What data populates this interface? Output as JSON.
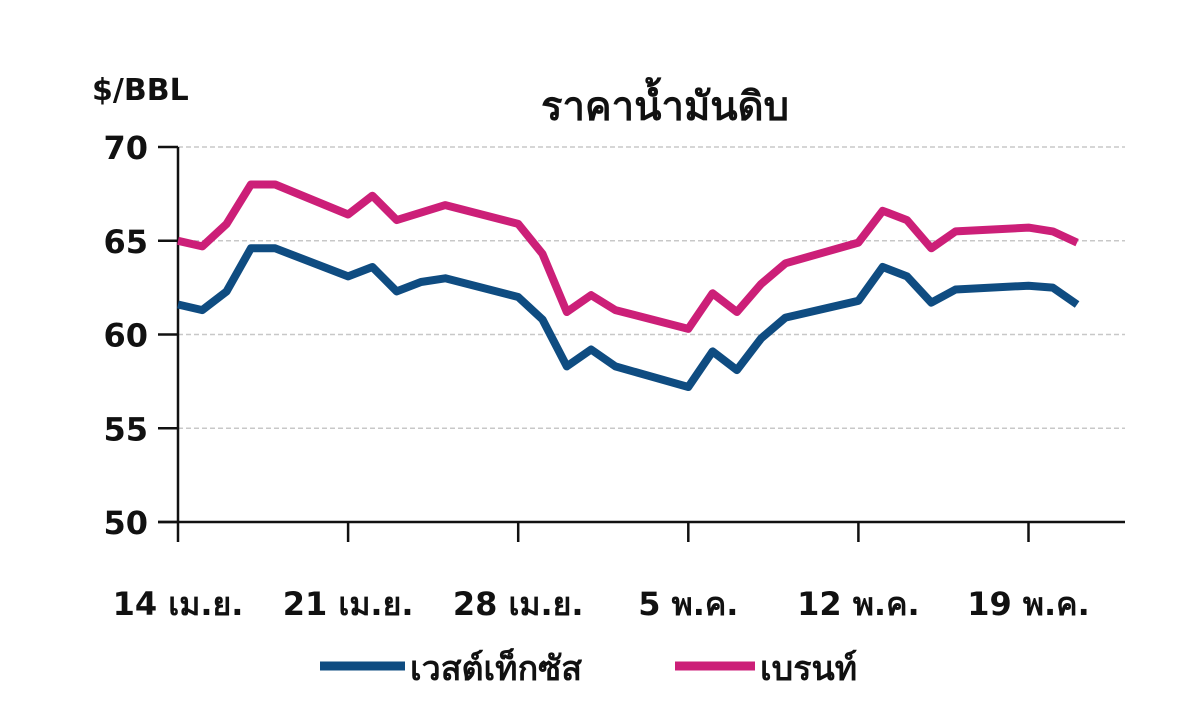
{
  "chart_data": {
    "type": "line",
    "title": "ราคาน้ำมันดิบ",
    "ylabel": "$/BBL",
    "xlabel": "",
    "ylim": [
      50,
      70
    ],
    "yticks": [
      50,
      55,
      60,
      65,
      70
    ],
    "xlim": [
      "2025-04-14",
      "2025-05-23"
    ],
    "xticks": [
      {
        "date": "2025-04-14",
        "label": "14 เม.ย."
      },
      {
        "date": "2025-04-21",
        "label": "21 เม.ย."
      },
      {
        "date": "2025-04-28",
        "label": "28 เม.ย."
      },
      {
        "date": "2025-05-05",
        "label": "5 พ.ค."
      },
      {
        "date": "2025-05-12",
        "label": "12 พ.ค."
      },
      {
        "date": "2025-05-19",
        "label": "19 พ.ค."
      }
    ],
    "grid": "horizontal dashed",
    "legend_position": "bottom",
    "x": [
      "2025-04-14",
      "2025-04-15",
      "2025-04-16",
      "2025-04-17",
      "2025-04-18",
      "2025-04-21",
      "2025-04-22",
      "2025-04-23",
      "2025-04-24",
      "2025-04-25",
      "2025-04-28",
      "2025-04-29",
      "2025-04-30",
      "2025-05-01",
      "2025-05-02",
      "2025-05-05",
      "2025-05-06",
      "2025-05-07",
      "2025-05-08",
      "2025-05-09",
      "2025-05-12",
      "2025-05-13",
      "2025-05-14",
      "2025-05-15",
      "2025-05-16",
      "2025-05-19",
      "2025-05-20",
      "2025-05-21"
    ],
    "series": [
      {
        "name": "เวสต์เท็กซัส",
        "color": "#0f4c81",
        "values": [
          61.6,
          61.3,
          62.3,
          64.6,
          64.6,
          63.1,
          63.6,
          62.3,
          62.8,
          63.0,
          62.0,
          60.8,
          58.3,
          59.2,
          58.3,
          57.2,
          59.1,
          58.1,
          59.8,
          60.9,
          61.8,
          63.6,
          63.1,
          61.7,
          62.4,
          62.6,
          62.5,
          61.6
        ]
      },
      {
        "name": "เบรนท์",
        "color": "#cc1f78",
        "values": [
          65.0,
          64.7,
          65.9,
          68.0,
          68.0,
          66.4,
          67.4,
          66.1,
          66.5,
          66.9,
          65.9,
          64.3,
          61.2,
          62.1,
          61.3,
          60.3,
          62.2,
          61.2,
          62.7,
          63.8,
          64.9,
          66.6,
          66.1,
          64.6,
          65.5,
          65.7,
          65.5,
          64.9
        ]
      }
    ]
  }
}
